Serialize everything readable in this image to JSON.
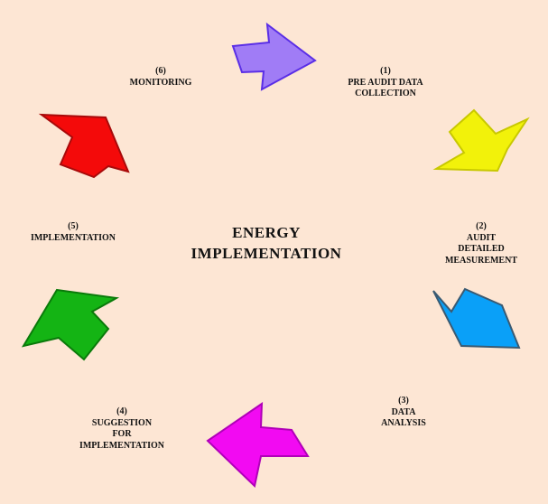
{
  "center": {
    "line1": "ENERGY",
    "line2": "IMPLEMENTATION"
  },
  "steps": [
    {
      "number": "(1)",
      "lines": [
        "PRE AUDIT DATA",
        "COLLECTION"
      ]
    },
    {
      "number": "(2)",
      "lines": [
        "AUDIT",
        "DETAILED",
        "MEASUREMENT"
      ]
    },
    {
      "number": "(3)",
      "lines": [
        "DATA",
        "ANALYSIS"
      ]
    },
    {
      "number": "(4)",
      "lines": [
        "SUGGESTION",
        "FOR",
        "IMPLEMENTATION"
      ]
    },
    {
      "number": "(5)",
      "lines": [
        "IMPLEMENTATION"
      ]
    },
    {
      "number": "(6)",
      "lines": [
        "MONITORING"
      ]
    }
  ],
  "arrows": [
    {
      "name": "arrow-purple",
      "fill": "#a07cf6",
      "stroke": "#5a2ee6"
    },
    {
      "name": "arrow-yellow",
      "fill": "#f2f20a",
      "stroke": "#c8c800"
    },
    {
      "name": "arrow-blue",
      "fill": "#0aa0f8",
      "stroke": "#3a5a72"
    },
    {
      "name": "arrow-magenta",
      "fill": "#f20af2",
      "stroke": "#b000b8"
    },
    {
      "name": "arrow-green",
      "fill": "#14b414",
      "stroke": "#0a7a0a"
    },
    {
      "name": "arrow-red",
      "fill": "#f40a0a",
      "stroke": "#a80a0a"
    }
  ],
  "background": "#fde6d4"
}
